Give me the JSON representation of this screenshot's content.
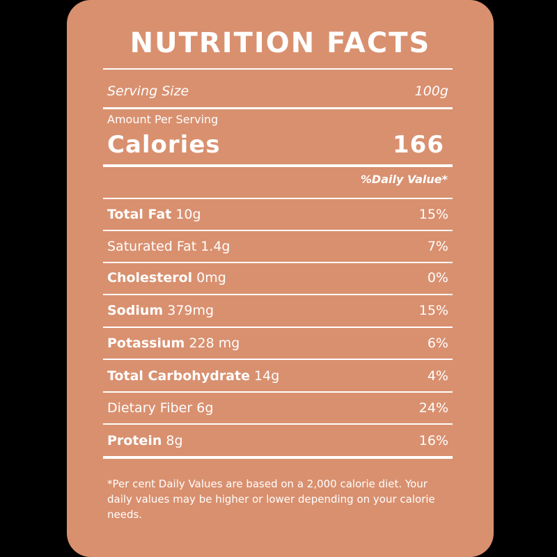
{
  "colors": {
    "background": "#000000",
    "card": "#d9906f",
    "text": "#ffffff"
  },
  "title": "NUTRITION FACTS",
  "serving": {
    "label": "Serving Size",
    "value": "100g"
  },
  "amount_per_serving": "Amount Per Serving",
  "calories": {
    "label": "Calories",
    "value": "166"
  },
  "daily_value_header": "%Daily Value*",
  "nutrients": [
    {
      "name": "Total Fat",
      "amount": "10g",
      "dv": "15%"
    },
    {
      "name": "Saturated Fat",
      "amount": "1.4g",
      "dv": "7%"
    },
    {
      "name": "Cholesterol",
      "amount": "0mg",
      "dv": "0%"
    },
    {
      "name": "Sodium",
      "amount": "379mg",
      "dv": "15%"
    },
    {
      "name": "Potassium",
      "amount": "228 mg",
      "dv": "6%"
    },
    {
      "name": "Total Carbohydrate",
      "amount": "14g",
      "dv": "4%"
    },
    {
      "name": "Dietary Fiber",
      "amount": "6g",
      "dv": "24%"
    },
    {
      "name": "Protein",
      "amount": "8g",
      "dv": "16%"
    }
  ],
  "footnote": "*Per cent Daily Values are based on a 2,000 calorie diet. Your daily values may be higher or lower depending on your calorie needs."
}
